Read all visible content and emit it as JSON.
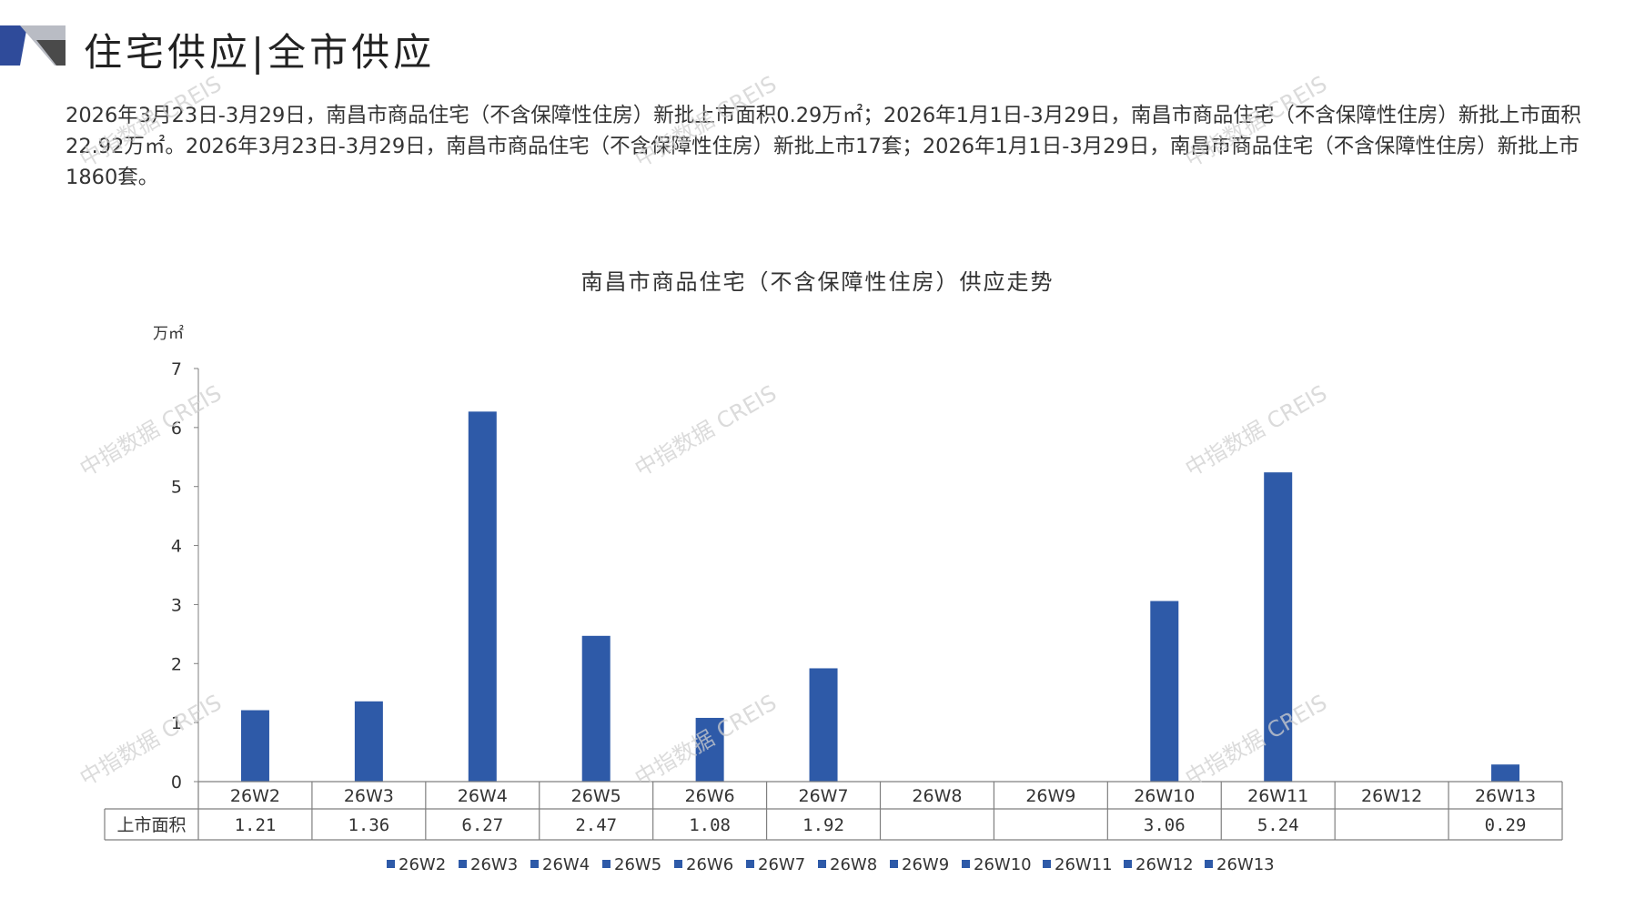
{
  "page_title": "住宅供应|全市供应",
  "summary": "2026年3月23日-3月29日，南昌市商品住宅（不含保障性住房）新批上市面积0.29万㎡；2026年1月1日-3月29日，南昌市商品住宅（不含保障性住房）新批上市面积22.92万㎡。2026年3月23日-3月29日，南昌市商品住宅（不含保障性住房）新批上市17套；2026年1月1日-3月29日，南昌市商品住宅（不含保障性住房）新批上市1860套。",
  "watermark": "中指数据 CREIS",
  "colors": {
    "bar": "#2E5AA8",
    "logo_dark": "#2F4B9A",
    "logo_light": "#B9BCC4",
    "axis": "#7f7f7f"
  },
  "chart_data": {
    "type": "bar",
    "title": "南昌市商品住宅（不含保障性住房）供应走势",
    "unit_label": "万㎡",
    "ylim": [
      0,
      7
    ],
    "yticks": [
      "0",
      "1",
      "2",
      "3",
      "4",
      "5",
      "6",
      "7"
    ],
    "categories": [
      "26W2",
      "26W3",
      "26W4",
      "26W5",
      "26W6",
      "26W7",
      "26W8",
      "26W9",
      "26W10",
      "26W11",
      "26W12",
      "26W13"
    ],
    "series": [
      {
        "name": "上市面积",
        "values": [
          1.21,
          1.36,
          6.27,
          2.47,
          1.08,
          1.92,
          null,
          null,
          3.06,
          5.24,
          null,
          0.29
        ],
        "labels": [
          "1.21",
          "1.36",
          "6.27",
          "2.47",
          "1.08",
          "1.92",
          "",
          "",
          "3.06",
          "5.24",
          "",
          "0.29"
        ]
      }
    ],
    "legend": [
      "26W2",
      "26W3",
      "26W4",
      "26W5",
      "26W6",
      "26W7",
      "26W8",
      "26W9",
      "26W10",
      "26W11",
      "26W12",
      "26W13"
    ],
    "legend_position": "bottom"
  }
}
